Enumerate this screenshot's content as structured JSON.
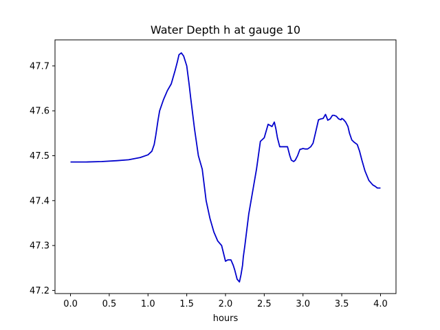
{
  "chart_data": {
    "type": "line",
    "title": "Water Depth h at gauge 10",
    "xlabel": "hours",
    "ylabel": "",
    "xlim": [
      -0.2,
      4.2
    ],
    "ylim": [
      47.193,
      47.758
    ],
    "xticks": [
      0.0,
      0.5,
      1.0,
      1.5,
      2.0,
      2.5,
      3.0,
      3.5,
      4.0
    ],
    "xtick_labels": [
      "0.0",
      "0.5",
      "1.0",
      "1.5",
      "2.0",
      "2.5",
      "3.0",
      "3.5",
      "4.0"
    ],
    "yticks": [
      47.2,
      47.3,
      47.4,
      47.5,
      47.6,
      47.7
    ],
    "ytick_labels": [
      "47.2",
      "47.3",
      "47.4",
      "47.5",
      "47.6",
      "47.7"
    ],
    "grid": false,
    "series": [
      {
        "color": "#0000cc",
        "x": [
          0.0,
          0.2,
          0.4,
          0.6,
          0.75,
          0.9,
          1.0,
          1.05,
          1.08,
          1.1,
          1.13,
          1.15,
          1.2,
          1.25,
          1.3,
          1.35,
          1.38,
          1.4,
          1.43,
          1.46,
          1.5,
          1.53,
          1.55,
          1.6,
          1.65,
          1.7,
          1.75,
          1.8,
          1.85,
          1.9,
          1.95,
          2.0,
          2.03,
          2.07,
          2.1,
          2.12,
          2.15,
          2.18,
          2.2,
          2.22,
          2.23,
          2.25,
          2.3,
          2.35,
          2.4,
          2.45,
          2.5,
          2.55,
          2.6,
          2.63,
          2.65,
          2.67,
          2.7,
          2.75,
          2.8,
          2.83,
          2.85,
          2.88,
          2.9,
          2.93,
          2.96,
          2.98,
          3.0,
          3.03,
          3.06,
          3.1,
          3.13,
          3.16,
          3.2,
          3.23,
          3.26,
          3.29,
          3.3,
          3.32,
          3.35,
          3.38,
          3.4,
          3.43,
          3.46,
          3.49,
          3.5,
          3.52,
          3.55,
          3.58,
          3.6,
          3.63,
          3.66,
          3.7,
          3.73,
          3.76,
          3.8,
          3.85,
          3.9,
          3.93,
          3.96,
          4.0
        ],
        "y": [
          47.486,
          47.486,
          47.487,
          47.489,
          47.491,
          47.496,
          47.502,
          47.51,
          47.525,
          47.545,
          47.58,
          47.6,
          47.625,
          47.645,
          47.66,
          47.69,
          47.71,
          47.725,
          47.729,
          47.722,
          47.7,
          47.66,
          47.63,
          47.56,
          47.5,
          47.47,
          47.4,
          47.36,
          47.33,
          47.31,
          47.3,
          47.265,
          47.268,
          47.268,
          47.256,
          47.245,
          47.225,
          47.219,
          47.235,
          47.256,
          47.275,
          47.3,
          47.37,
          47.42,
          47.47,
          47.532,
          47.54,
          47.57,
          47.565,
          47.575,
          47.56,
          47.54,
          47.52,
          47.52,
          47.52,
          47.5,
          47.49,
          47.487,
          47.49,
          47.5,
          47.514,
          47.515,
          47.516,
          47.515,
          47.515,
          47.52,
          47.528,
          47.55,
          47.58,
          47.582,
          47.583,
          47.592,
          47.588,
          47.579,
          47.582,
          47.59,
          47.59,
          47.588,
          47.582,
          47.58,
          47.583,
          47.581,
          47.575,
          47.565,
          47.55,
          47.535,
          47.53,
          47.525,
          47.51,
          47.49,
          47.466,
          47.445,
          47.435,
          47.432,
          47.428,
          47.428
        ]
      }
    ]
  }
}
